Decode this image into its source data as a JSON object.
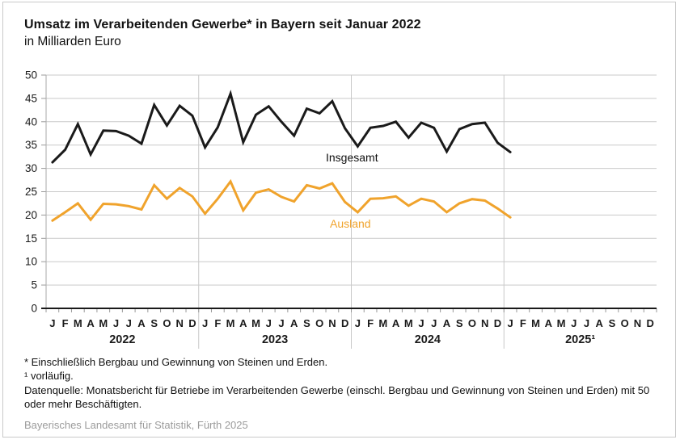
{
  "chart_data": {
    "type": "line",
    "title": "Umsatz im Verarbeitenden Gewerbe* in Bayern seit Januar 2022",
    "subtitle": "in Milliarden Euro",
    "ylim": [
      0,
      50
    ],
    "y_ticks": [
      0,
      5,
      10,
      15,
      20,
      25,
      30,
      35,
      40,
      45,
      50
    ],
    "x_month_letters": [
      "J",
      "F",
      "M",
      "A",
      "M",
      "J",
      "J",
      "A",
      "S",
      "O",
      "N",
      "D"
    ],
    "x_years": [
      "2022",
      "2023",
      "2024",
      "2025¹"
    ],
    "grid": "horizontal gridlines every 5; vertical separators at year boundaries",
    "legend_position": "inline labels next to lines",
    "series": [
      {
        "name": "Insgesamt",
        "color": "#1a1a1a",
        "values": [
          31.3,
          34.0,
          39.5,
          33.0,
          38.1,
          38.0,
          37.0,
          35.3,
          43.6,
          39.2,
          43.4,
          41.3,
          34.5,
          38.8,
          46.0,
          35.6,
          41.5,
          43.3,
          40.0,
          37.0,
          42.8,
          41.8,
          44.4,
          38.6,
          34.7,
          38.7,
          39.1,
          40.0,
          36.6,
          39.8,
          38.7,
          33.6,
          38.4,
          39.5,
          39.8,
          35.5,
          33.5
        ]
      },
      {
        "name": "Ausland",
        "color": "#f0a32c",
        "values": [
          18.8,
          20.6,
          22.5,
          19.0,
          22.4,
          22.3,
          21.9,
          21.2,
          26.4,
          23.5,
          25.8,
          24.0,
          20.3,
          23.5,
          27.2,
          21.0,
          24.8,
          25.5,
          23.9,
          22.9,
          26.4,
          25.7,
          26.8,
          22.8,
          20.6,
          23.5,
          23.6,
          24.0,
          22.0,
          23.5,
          22.9,
          20.6,
          22.5,
          23.4,
          23.1,
          21.4,
          19.5
        ]
      }
    ]
  },
  "footnotes": {
    "asterisk": "* Einschließlich Bergbau und Gewinnung von Steinen und Erden.",
    "preliminary": "¹ vorläufig.",
    "source": "Datenquelle: Monatsbericht für Betriebe im Verarbeitenden Gewerbe (einschl. Bergbau und Gewinnung von Steinen und Erden) mit 50 oder mehr Beschäftigten."
  },
  "footer": {
    "credit": "Bayerisches Landesamt für Statistik, Fürth 2025"
  }
}
